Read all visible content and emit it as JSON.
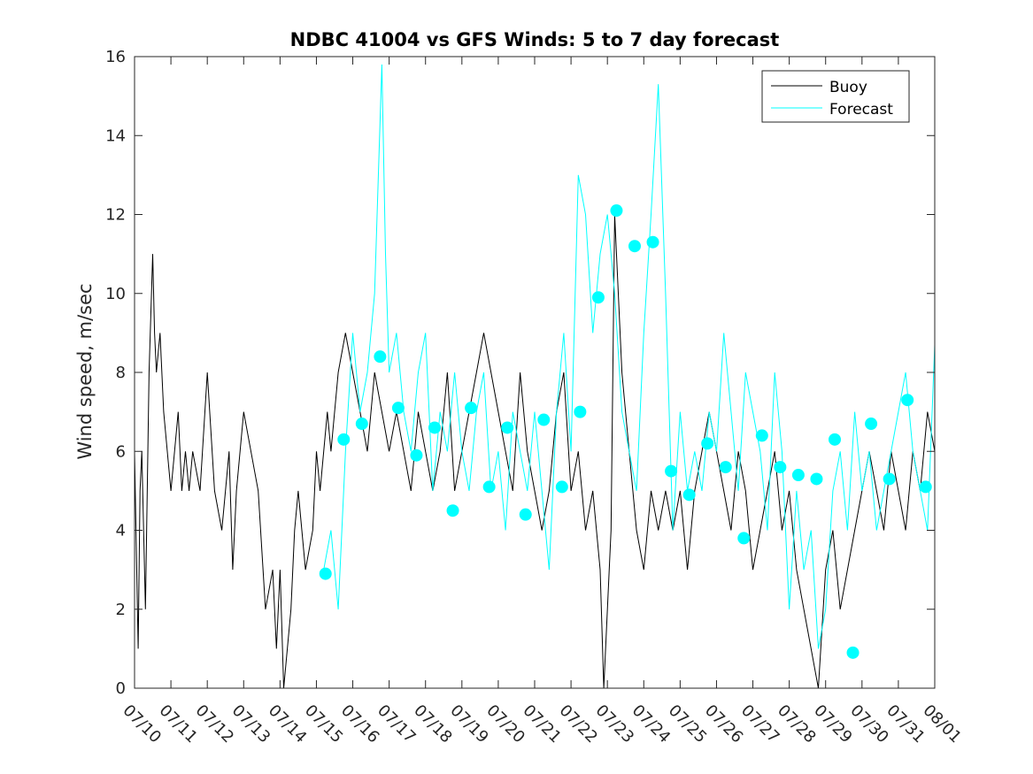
{
  "chart_data": {
    "type": "line",
    "title": "NDBC 41004 vs GFS Winds: 5 to 7 day forecast",
    "xlabel": "",
    "ylabel": "Wind speed, m/sec",
    "x_axis_type": "date",
    "xlim": [
      "07/10",
      "08/01"
    ],
    "ylim": [
      0,
      16
    ],
    "yticks": [
      0,
      2,
      4,
      6,
      8,
      10,
      12,
      14,
      16
    ],
    "xtick_labels": [
      "07/10",
      "07/11",
      "07/12",
      "07/13",
      "07/14",
      "07/15",
      "07/16",
      "07/17",
      "07/18",
      "07/19",
      "07/20",
      "07/21",
      "07/22",
      "07/23",
      "07/24",
      "07/25",
      "07/26",
      "07/27",
      "07/28",
      "07/29",
      "07/30",
      "07/31",
      "08/01"
    ],
    "xtick_label_rotation_deg": -45,
    "grid": false,
    "legend": {
      "position": "top-right",
      "entries": [
        "Buoy",
        "Forecast"
      ]
    },
    "colors": {
      "buoy": "#000000",
      "forecast": "#00ffff",
      "axes": "#262626"
    },
    "series": [
      {
        "name": "Buoy",
        "style": "line",
        "x_days_from_07_10": [
          0,
          0.1,
          0.15,
          0.2,
          0.3,
          0.4,
          0.5,
          0.55,
          0.6,
          0.7,
          0.8,
          0.9,
          1.0,
          1.1,
          1.2,
          1.3,
          1.4,
          1.5,
          1.6,
          1.8,
          2.0,
          2.2,
          2.4,
          2.6,
          2.7,
          2.8,
          3.0,
          3.2,
          3.4,
          3.6,
          3.8,
          3.9,
          4.0,
          4.1,
          4.2,
          4.3,
          4.4,
          4.5,
          4.7,
          4.9,
          5.0,
          5.1,
          5.2,
          5.3,
          5.4,
          5.5,
          5.6,
          5.8,
          6.0,
          6.2,
          6.4,
          6.6,
          6.8,
          7.0,
          7.2,
          7.4,
          7.6,
          7.8,
          8.0,
          8.2,
          8.4,
          8.6,
          8.8,
          9.0,
          9.2,
          9.4,
          9.6,
          9.8,
          10.0,
          10.2,
          10.4,
          10.6,
          10.8,
          11.0,
          11.2,
          11.4,
          11.6,
          11.8,
          12.0,
          12.2,
          12.4,
          12.6,
          12.8,
          12.9,
          13.0,
          13.1,
          13.2,
          13.4,
          13.6,
          13.8,
          14.0,
          14.2,
          14.4,
          14.6,
          14.8,
          15.0,
          15.2,
          15.4,
          15.6,
          15.8,
          16.0,
          16.2,
          16.4,
          16.6,
          16.8,
          17.0,
          17.2,
          17.4,
          17.6,
          17.8,
          18.0,
          18.2,
          18.4,
          18.6,
          18.8,
          19.0,
          19.2,
          19.4,
          19.6,
          19.8,
          20.0,
          20.2,
          20.4,
          20.6,
          20.8,
          21.0,
          21.2,
          21.4,
          21.6,
          21.8,
          22.0
        ],
        "y": [
          6,
          1,
          5,
          6,
          2,
          8,
          11,
          9,
          8,
          9,
          7,
          6,
          5,
          6,
          7,
          5,
          6,
          5,
          6,
          5,
          8,
          5,
          4,
          6,
          3,
          5,
          7,
          6,
          5,
          2,
          3,
          1,
          3,
          0,
          1,
          2,
          4,
          5,
          3,
          4,
          6,
          5,
          6,
          7,
          6,
          7,
          8,
          9,
          8,
          7,
          6,
          8,
          7,
          6,
          7,
          6,
          5,
          7,
          6,
          5,
          6,
          8,
          5,
          6,
          7,
          8,
          9,
          8,
          7,
          6,
          5,
          8,
          6,
          5,
          4,
          5,
          7,
          8,
          5,
          6,
          4,
          5,
          3,
          0,
          2,
          4,
          12,
          8,
          6,
          4,
          3,
          5,
          4,
          5,
          4,
          5,
          3,
          5,
          6,
          7,
          6,
          5,
          4,
          6,
          5,
          3,
          4,
          5,
          6,
          4,
          5,
          3,
          2,
          1,
          0,
          3,
          4,
          2,
          3,
          4,
          5,
          6,
          5,
          4,
          6,
          5,
          4,
          6,
          5,
          7,
          6,
          5
        ]
      },
      {
        "name": "Forecast",
        "style": "line",
        "x_days_from_07_10": [
          5.2,
          5.4,
          5.6,
          5.8,
          6.0,
          6.2,
          6.4,
          6.6,
          6.8,
          6.9,
          7.0,
          7.2,
          7.4,
          7.6,
          7.8,
          8.0,
          8.2,
          8.4,
          8.6,
          8.8,
          9.0,
          9.2,
          9.4,
          9.6,
          9.8,
          10.0,
          10.2,
          10.4,
          10.6,
          10.8,
          11.0,
          11.2,
          11.4,
          11.6,
          11.8,
          12.0,
          12.2,
          12.4,
          12.6,
          12.8,
          13.0,
          13.2,
          13.4,
          13.6,
          13.8,
          14.0,
          14.2,
          14.4,
          14.6,
          14.8,
          15.0,
          15.2,
          15.4,
          15.6,
          15.8,
          16.0,
          16.2,
          16.4,
          16.6,
          16.8,
          17.0,
          17.2,
          17.4,
          17.6,
          17.8,
          18.0,
          18.2,
          18.4,
          18.6,
          18.8,
          19.0,
          19.2,
          19.4,
          19.6,
          19.8,
          20.0,
          20.2,
          20.4,
          20.6,
          20.8,
          21.0,
          21.2,
          21.4,
          21.6,
          21.8,
          22.0
        ],
        "y": [
          3,
          4,
          2,
          6,
          9,
          7,
          8,
          10,
          15.8,
          11,
          8,
          9,
          7,
          6,
          8,
          9,
          5,
          7,
          6,
          8,
          6,
          5,
          7,
          8,
          5,
          6,
          4,
          7,
          6,
          5,
          7,
          5,
          3,
          7,
          9,
          6,
          13,
          12,
          9,
          11,
          12,
          10,
          7,
          6,
          5,
          9,
          12,
          15.3,
          10,
          4,
          7,
          5,
          6,
          5,
          7,
          6,
          9,
          7,
          5,
          8,
          7,
          6,
          4,
          8,
          6,
          2,
          5,
          3,
          4,
          1,
          2,
          5,
          6,
          4,
          7,
          5,
          6,
          4,
          5,
          6,
          7,
          8,
          6,
          5,
          4,
          8.7
        ]
      },
      {
        "name": "Forecast",
        "style": "markers",
        "x_days_from_07_10": [
          5.25,
          5.75,
          6.25,
          6.75,
          7.25,
          7.75,
          8.25,
          8.75,
          9.25,
          9.75,
          10.25,
          10.75,
          11.25,
          11.75,
          12.25,
          12.75,
          13.25,
          13.75,
          14.25,
          14.75,
          15.25,
          15.75,
          16.25,
          16.75,
          17.25,
          17.75,
          18.25,
          18.75,
          19.25,
          19.75,
          20.25,
          20.75,
          21.25,
          21.75
        ],
        "y": [
          2.9,
          6.3,
          6.7,
          8.4,
          7.1,
          5.9,
          6.6,
          4.5,
          7.1,
          5.1,
          6.6,
          4.4,
          6.8,
          5.1,
          7.0,
          9.9,
          12.1,
          11.2,
          11.3,
          5.5,
          4.9,
          6.2,
          5.6,
          3.8,
          6.4,
          5.6,
          5.4,
          5.3,
          6.3,
          0.9,
          6.7,
          5.3,
          7.3,
          5.1
        ]
      }
    ]
  }
}
